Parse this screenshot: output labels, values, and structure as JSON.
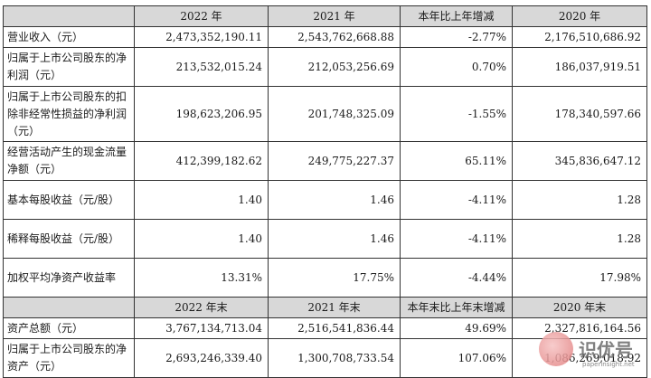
{
  "header1": [
    "",
    "2022 年",
    "2021 年",
    "本年比上年增减",
    "2020 年"
  ],
  "rows1": [
    {
      "label": "营业收入（元）",
      "v2022": "2,473,352,190.11",
      "v2021": "2,543,762,668.88",
      "chg": "-2.77%",
      "v2020": "2,176,510,686.92"
    },
    {
      "label": "归属于上市公司股东的净利润（元）",
      "v2022": "213,532,015.24",
      "v2021": "212,053,256.69",
      "chg": "0.70%",
      "v2020": "186,037,919.51"
    },
    {
      "label": "归属于上市公司股东的扣除非经常性损益的净利润（元）",
      "v2022": "198,623,206.95",
      "v2021": "201,748,325.09",
      "chg": "-1.55%",
      "v2020": "178,340,597.66"
    },
    {
      "label": "经营活动产生的现金流量净额（元）",
      "v2022": "412,399,182.62",
      "v2021": "249,775,227.37",
      "chg": "65.11%",
      "v2020": "345,836,647.12"
    },
    {
      "label": "基本每股收益（元/股）",
      "v2022": "1.40",
      "v2021": "1.46",
      "chg": "-4.11%",
      "v2020": "1.28"
    },
    {
      "label": "稀释每股收益（元/股）",
      "v2022": "1.40",
      "v2021": "1.46",
      "chg": "-4.11%",
      "v2020": "1.28"
    },
    {
      "label": "加权平均净资产收益率",
      "v2022": "13.31%",
      "v2021": "17.75%",
      "chg": "-4.44%",
      "v2020": "17.98%"
    }
  ],
  "header2": [
    "",
    "2022 年末",
    "2021 年末",
    "本年末比上年末增减",
    "2020 年末"
  ],
  "rows2": [
    {
      "label": "资产总额（元）",
      "v2022": "3,767,134,713.04",
      "v2021": "2,516,541,836.44",
      "chg": "49.69%",
      "v2020": "2,327,816,164.56"
    },
    {
      "label": "归属于上市公司股东的净资产（元）",
      "v2022": "2,693,246,339.40",
      "v2021": "1,300,708,733.54",
      "chg": "107.06%",
      "v2020": "1,086,269,018.92"
    }
  ],
  "watermark": {
    "brand": "识优号",
    "site": "paperinsight.net"
  }
}
